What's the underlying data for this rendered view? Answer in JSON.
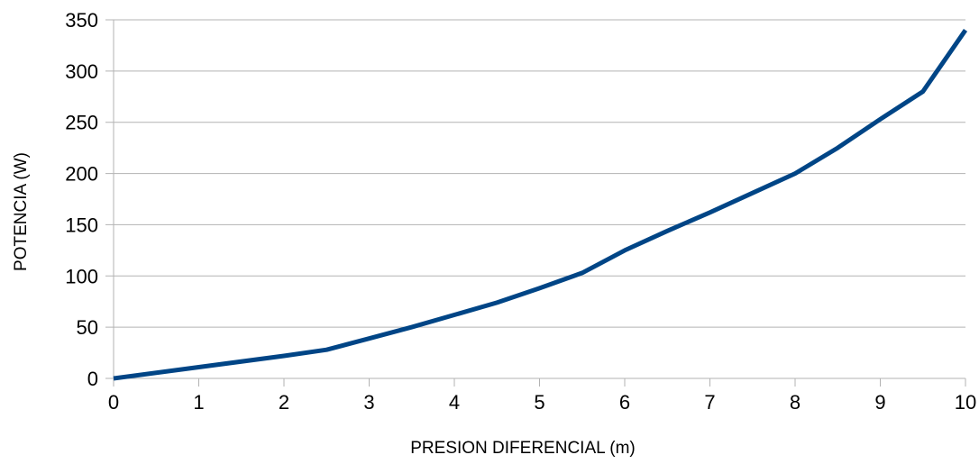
{
  "chart_data": {
    "type": "line",
    "title": "",
    "xlabel": "PRESION DIFERENCIAL (m)",
    "ylabel": "POTENCIA (W)",
    "xlim": [
      0,
      10
    ],
    "ylim": [
      0,
      350
    ],
    "x_ticks": [
      0,
      1,
      2,
      3,
      4,
      5,
      6,
      7,
      8,
      9,
      10
    ],
    "y_ticks": [
      0,
      50,
      100,
      150,
      200,
      250,
      300,
      350
    ],
    "grid": "horizontal",
    "legend": "none",
    "colors": {
      "line": "#004586",
      "grid": "#b3b3b3",
      "axis": "#b3b3b3"
    },
    "series": [
      {
        "x": [
          0,
          1,
          2,
          2.5,
          3,
          3.5,
          4,
          4.5,
          5,
          5.5,
          6,
          6.5,
          7,
          7.5,
          8,
          8.5,
          9,
          9.5,
          10
        ],
        "values": [
          0,
          11,
          22,
          28,
          39,
          50,
          62,
          74,
          88,
          103,
          125,
          144,
          162,
          181,
          200,
          225,
          253,
          280,
          340
        ]
      }
    ]
  }
}
